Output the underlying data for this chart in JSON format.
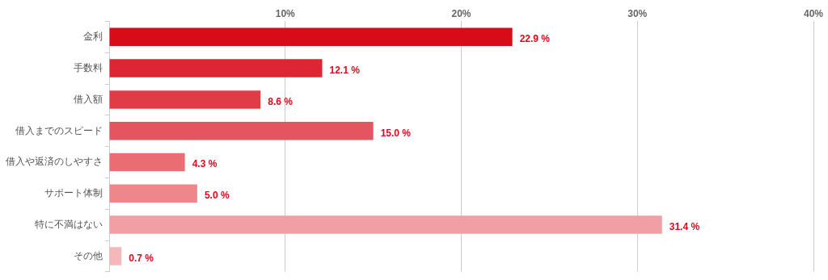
{
  "chart_data": {
    "type": "bar",
    "orientation": "horizontal",
    "categories": [
      "金利",
      "手数料",
      "借入額",
      "借入までのスピード",
      "借入や返済のしやすさ",
      "サポート体制",
      "特に不満はない",
      "その他"
    ],
    "values": [
      22.9,
      12.1,
      8.6,
      15.0,
      4.3,
      5.0,
      31.4,
      0.7
    ],
    "colors": [
      "#d80c18",
      "#de2533",
      "#e03c47",
      "#e5555f",
      "#ea6d73",
      "#ee878b",
      "#f0a0a4",
      "#f4b8bb"
    ],
    "value_labels": [
      "22.9 %",
      "12.1 %",
      "8.6 %",
      "15.0 %",
      "4.3 %",
      "5.0 %",
      "31.4 %",
      "0.7 %"
    ],
    "xlim": [
      0,
      40
    ],
    "xticks": [
      {
        "value": 0,
        "label": null
      },
      {
        "value": 10,
        "label": "10%"
      },
      {
        "value": 20,
        "label": "20%"
      },
      {
        "value": 30,
        "label": "30%"
      },
      {
        "value": 40,
        "label": "40%"
      }
    ],
    "grid": "x",
    "legend": false
  }
}
